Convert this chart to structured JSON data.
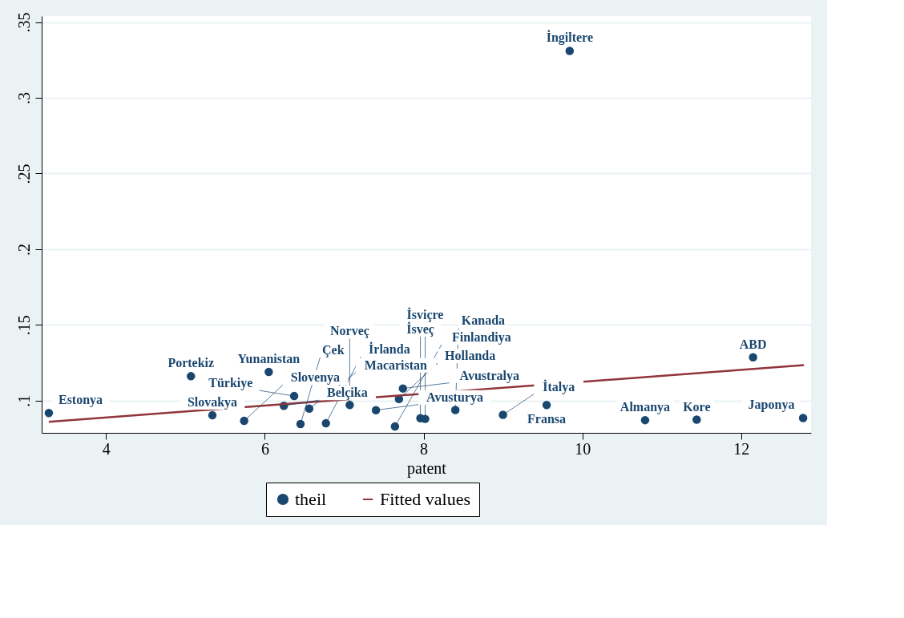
{
  "chart_data": {
    "type": "scatter",
    "xlabel": "patent",
    "xlim": [
      3.19,
      12.88
    ],
    "xticks": [
      4,
      6,
      8,
      10,
      12
    ],
    "ylim": [
      0.0787,
      0.354
    ],
    "yticks": [
      {
        "value": 0.1,
        "label": ".1"
      },
      {
        "value": 0.15,
        "label": ".15"
      },
      {
        "value": 0.2,
        "label": ".2"
      },
      {
        "value": 0.25,
        "label": ".25"
      },
      {
        "value": 0.3,
        "label": ".3"
      },
      {
        "value": 0.35,
        "label": ".35"
      }
    ],
    "grid": "y",
    "legend": "bottom",
    "series": [
      {
        "name": "theil",
        "marker": "circle",
        "color": "#1a476f",
        "x": [
          3.28,
          5.07,
          5.34,
          5.74,
          6.05,
          6.37,
          6.24,
          6.56,
          6.45,
          6.77,
          7.07,
          7.74,
          7.69,
          7.4,
          7.64,
          7.96,
          8.02,
          8.4,
          9.0,
          9.55,
          9.84,
          10.79,
          11.44,
          12.15,
          12.78
        ],
        "values": [
          0.0918,
          0.1161,
          0.0903,
          0.0866,
          0.1189,
          0.103,
          0.0966,
          0.0947,
          0.0845,
          0.085,
          0.0971,
          0.108,
          0.101,
          0.0937,
          0.0829,
          0.0884,
          0.0879,
          0.0938,
          0.0906,
          0.0971,
          0.331,
          0.0871,
          0.0874,
          0.1286,
          0.0885
        ]
      },
      {
        "name": "Fitted values",
        "type": "line",
        "color": "#90353b",
        "line_style": "solid",
        "x": [
          3.28,
          12.79
        ],
        "values": [
          0.086,
          0.1234
        ]
      }
    ],
    "annotations": [
      {
        "text": "Estonya",
        "x": 3.28,
        "y": 0.0918
      },
      {
        "text": "Portekiz",
        "x": 5.07,
        "y": 0.1161
      },
      {
        "text": "Slovakya",
        "x": 5.34,
        "y": 0.0903
      },
      {
        "text": "Slovenya",
        "x": 5.74,
        "y": 0.0866
      },
      {
        "text": "Yunanistan",
        "x": 6.05,
        "y": 0.1189
      },
      {
        "text": "Türkiye",
        "x": 6.37,
        "y": 0.103
      },
      {
        "text": "Belçika",
        "x": 6.24,
        "y": 0.0966
      },
      {
        "text": "Macaristan",
        "x": 6.56,
        "y": 0.0947
      },
      {
        "text": "Çek",
        "x": 6.45,
        "y": 0.0845
      },
      {
        "text": "İrlanda",
        "x": 6.77,
        "y": 0.085
      },
      {
        "text": "Norveç",
        "x": 7.07,
        "y": 0.0971
      },
      {
        "text": "Avustralya",
        "x": 7.74,
        "y": 0.108
      },
      {
        "text": "Hollanda",
        "x": 7.69,
        "y": 0.101
      },
      {
        "text": "Avusturya",
        "x": 7.4,
        "y": 0.0937
      },
      {
        "text": "Finlandiya",
        "x": 7.64,
        "y": 0.0829
      },
      {
        "text": "İsveç",
        "x": 7.96,
        "y": 0.0884
      },
      {
        "text": "İsviçre",
        "x": 8.02,
        "y": 0.0879
      },
      {
        "text": "Kanada",
        "x": 8.4,
        "y": 0.0938
      },
      {
        "text": "İtalya",
        "x": 9.0,
        "y": 0.0906
      },
      {
        "text": "Fransa",
        "x": 9.55,
        "y": 0.0971
      },
      {
        "text": "İngiltere",
        "x": 9.84,
        "y": 0.331
      },
      {
        "text": "Almanya",
        "x": 10.79,
        "y": 0.0871
      },
      {
        "text": "Kore",
        "x": 11.44,
        "y": 0.0874
      },
      {
        "text": "ABD",
        "x": 12.15,
        "y": 0.1286
      },
      {
        "text": "Japonya",
        "x": 12.78,
        "y": 0.0885
      }
    ]
  }
}
